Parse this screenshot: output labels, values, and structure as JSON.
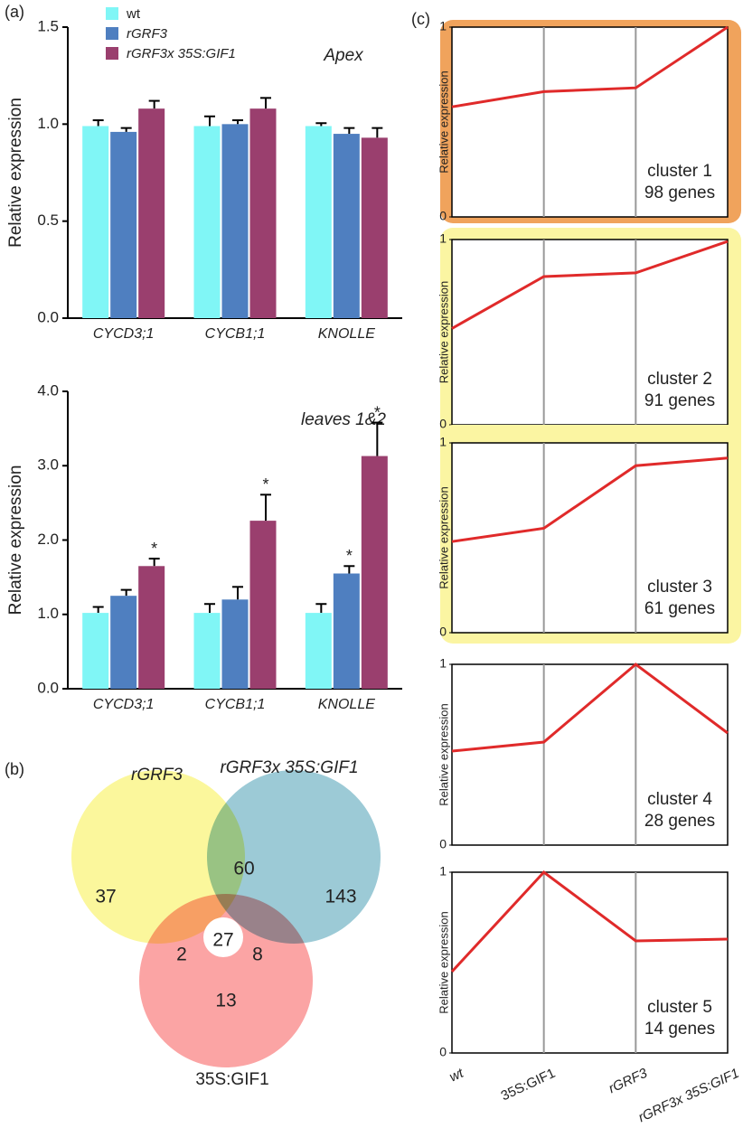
{
  "chart_data": [
    {
      "type": "bar",
      "panel": "(a)",
      "title": "Apex",
      "ylabel": "Relative expression",
      "categories": [
        "CYCD3;1",
        "CYCB1;1",
        "KNOLLE"
      ],
      "series": [
        {
          "name": "wt",
          "color": "#80f6f6",
          "values": [
            0.99,
            0.99,
            0.99
          ],
          "errors": [
            0.03,
            0.05,
            0.015
          ]
        },
        {
          "name": "rGRF3",
          "color": "#4f7fc0",
          "values": [
            0.96,
            1.0,
            0.95
          ],
          "errors": [
            0.02,
            0.02,
            0.03
          ]
        },
        {
          "name": "rGRF3x 35S:GIF1",
          "color": "#9a3f6e",
          "values": [
            1.08,
            1.08,
            0.93
          ],
          "errors": [
            0.04,
            0.055,
            0.05
          ]
        }
      ],
      "ylim": [
        0,
        1.5
      ],
      "yticks": [
        {
          "value": 0,
          "label": "0.0"
        },
        {
          "value": 0.5,
          "label": "0.5"
        },
        {
          "value": 1,
          "label": "1.0"
        },
        {
          "value": 1.5,
          "label": "1.5"
        }
      ],
      "legend": "top-left"
    },
    {
      "type": "bar",
      "title": "leaves 1&2",
      "ylabel": "Relative expression",
      "categories": [
        "CYCD3;1",
        "CYCB1;1",
        "KNOLLE"
      ],
      "series": [
        {
          "color": "#80f6f6",
          "values": [
            1.02,
            1.02,
            1.02
          ],
          "errors": [
            0.08,
            0.12,
            0.12
          ],
          "labels": [
            null,
            null,
            null
          ]
        },
        {
          "color": "#4f7fc0",
          "values": [
            1.25,
            1.2,
            1.55
          ],
          "errors": [
            0.08,
            0.17,
            0.1
          ],
          "labels": [
            null,
            null,
            "*"
          ]
        },
        {
          "color": "#9a3f6e",
          "values": [
            1.65,
            2.26,
            3.13
          ],
          "errors": [
            0.1,
            0.35,
            0.45
          ],
          "labels": [
            "*",
            "*",
            "*"
          ]
        }
      ],
      "ylim": [
        0,
        4
      ],
      "yticks": [
        {
          "value": 0,
          "label": "0.0"
        },
        {
          "value": 1,
          "label": "1.0"
        },
        {
          "value": 2,
          "label": "2.0"
        },
        {
          "value": 3,
          "label": "3.0"
        },
        {
          "value": 4,
          "label": "4.0"
        }
      ]
    },
    {
      "type": "venn",
      "panel": "(b)",
      "sets": [
        {
          "name": "rGRF3",
          "color": "#fbf79c"
        },
        {
          "name": "rGRF3x 35S:GIF1",
          "color": "#9ccad6"
        },
        {
          "name": "35S:GIF1",
          "color": "#fba4a4"
        }
      ],
      "regions": [
        37,
        143,
        13,
        60,
        2,
        8,
        27
      ]
    },
    {
      "type": "line",
      "panel": "(c)",
      "ylabel": "Relative expression",
      "annotation": [
        "cluster 1",
        "98 genes"
      ],
      "highlight": "#f0a35c",
      "color": "#e02a2a",
      "values": [
        0.58,
        0.66,
        0.68,
        1.0
      ],
      "ylim": [
        0,
        1
      ],
      "yticks": [
        0,
        1
      ]
    },
    {
      "type": "line",
      "ylabel": "Relative expression",
      "annotation": [
        "cluster 2",
        "91 genes"
      ],
      "highlight": "#fbf5a2",
      "color": "#e02a2a",
      "values": [
        0.52,
        0.8,
        0.82,
        0.99
      ],
      "ylim": [
        0,
        1
      ],
      "yticks": [
        0,
        1
      ]
    },
    {
      "type": "line",
      "ylabel": "Relative expression",
      "annotation": [
        "cluster 3",
        "61 genes"
      ],
      "highlight": "#fbf5a2",
      "color": "#e02a2a",
      "values": [
        0.48,
        0.55,
        0.88,
        0.92
      ],
      "ylim": [
        0,
        1
      ],
      "yticks": [
        0,
        1
      ]
    },
    {
      "type": "line",
      "ylabel": "Relative expression",
      "annotation": [
        "cluster 4",
        "28 genes"
      ],
      "color": "#e02a2a",
      "values": [
        0.52,
        0.57,
        1.0,
        0.62
      ],
      "ylim": [
        0,
        1
      ],
      "yticks": [
        0,
        1
      ]
    },
    {
      "type": "line",
      "ylabel": "Relative expression",
      "annotation": [
        "cluster 5",
        "14 genes"
      ],
      "categories": [
        "wt",
        "35S:GIF1",
        "rGRF3",
        "rGRF3x 35S:GIF1"
      ],
      "color": "#e02a2a",
      "values": [
        0.45,
        1.0,
        0.62,
        0.63
      ],
      "ylim": [
        0,
        1
      ],
      "yticks": [
        0,
        1
      ]
    }
  ]
}
